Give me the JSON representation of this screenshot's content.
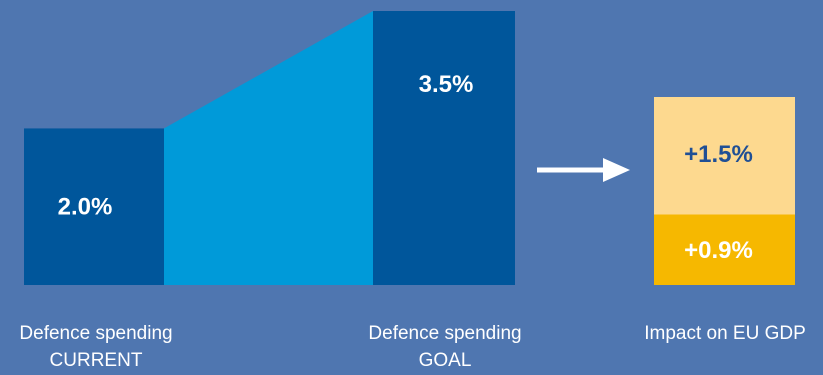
{
  "chart_data": {
    "type": "bar",
    "unit": "%",
    "spending": {
      "current": {
        "value": 2.0,
        "label": "2.0%",
        "caption_line1": "Defence spending",
        "caption_line2": "CURRENT"
      },
      "goal": {
        "value": 3.5,
        "label": "3.5%",
        "caption_line1": "Defence spending",
        "caption_line2": "GOAL"
      },
      "ylim": [
        0,
        3.5
      ]
    },
    "impact": {
      "caption": "Impact on EU GDP",
      "segments": [
        {
          "value": 0.9,
          "label": "+0.9%"
        },
        {
          "value": 1.5,
          "label": "+1.5%"
        }
      ]
    }
  },
  "colors": {
    "background": "#4f76b0",
    "bar_dark": "#00569b",
    "connector": "#009ad9",
    "impact_light": "#fdd98f",
    "impact_strong": "#f6b800",
    "arrow": "#ffffff",
    "impact_text_light": "#1f4f95",
    "impact_text_strong": "#ffffff"
  }
}
